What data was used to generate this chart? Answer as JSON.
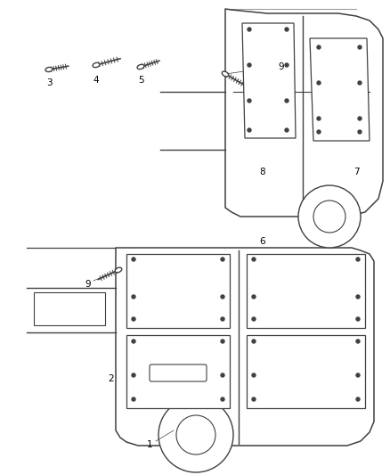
{
  "background_color": "#ffffff",
  "line_color": "#404040",
  "label_color": "#000000",
  "figsize": [
    4.38,
    5.33
  ],
  "dpi": 100
}
